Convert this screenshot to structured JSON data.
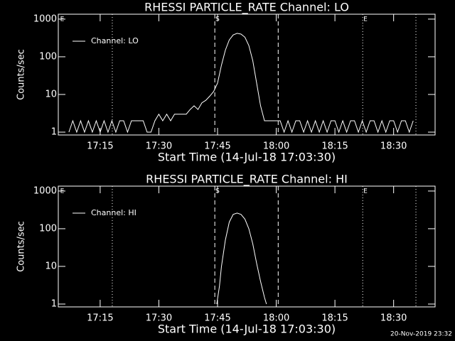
{
  "chart_data": [
    {
      "type": "line",
      "title": "RHESSI PARTICLE_RATE Channel: LO",
      "xlabel": "Start Time (14-Jul-18 17:03:30)",
      "ylabel": "Counts/sec",
      "yscale": "log",
      "xlim": [
        1024.3,
        1120.6
      ],
      "ylim": [
        0.84,
        1350
      ],
      "xticks": [
        {
          "value": 1035,
          "label": "17:15"
        },
        {
          "value": 1050,
          "label": "17:30"
        },
        {
          "value": 1065,
          "label": "17:45"
        },
        {
          "value": 1080,
          "label": "18:00"
        },
        {
          "value": 1095,
          "label": "18:15"
        },
        {
          "value": 1110,
          "label": "18:30"
        }
      ],
      "yticks": [
        1,
        10,
        100,
        1000
      ],
      "markers": [
        {
          "value": 1038.1,
          "style": "dotted"
        },
        {
          "value": 1064.3,
          "style": "dashed"
        },
        {
          "value": 1080.5,
          "style": "dashed"
        },
        {
          "value": 1102.1,
          "style": "dotted"
        },
        {
          "value": 1115.7,
          "style": "dotted"
        }
      ],
      "marker_labels": [
        {
          "value": 1024.6,
          "label": "E"
        },
        {
          "value": 1064.3,
          "label": "S"
        },
        {
          "value": 1102.1,
          "label": "E"
        }
      ],
      "x": [
        1027,
        1028,
        1029,
        1030,
        1031,
        1032,
        1033,
        1034,
        1035,
        1036,
        1037,
        1038,
        1039,
        1040,
        1041,
        1042,
        1043,
        1044,
        1045,
        1046,
        1047,
        1048,
        1049,
        1050,
        1051,
        1052,
        1053,
        1054,
        1055,
        1056,
        1057,
        1058,
        1059,
        1060,
        1061,
        1062,
        1063,
        1064,
        1065,
        1066,
        1067,
        1068,
        1069,
        1070,
        1071,
        1072,
        1073,
        1074,
        1075,
        1076,
        1077,
        1078,
        1079,
        1080,
        1081,
        1082,
        1083,
        1084,
        1085,
        1086,
        1087,
        1088,
        1089,
        1090,
        1091,
        1092,
        1093,
        1094,
        1095,
        1096,
        1097,
        1098,
        1099,
        1100,
        1101,
        1102,
        1103,
        1104,
        1105,
        1106,
        1107,
        1108,
        1109,
        1110,
        1111,
        1112,
        1113,
        1114,
        1115
      ],
      "series": [
        {
          "name": "Channel: LO",
          "color": "#ffffff",
          "values": [
            1,
            2,
            1,
            2,
            1,
            2,
            1,
            2,
            1,
            2,
            1,
            2,
            1,
            2,
            2,
            1,
            2,
            2,
            2,
            2,
            1,
            1,
            2,
            3,
            2,
            3,
            2,
            3,
            3,
            3,
            3,
            4,
            5,
            4,
            6,
            7,
            9,
            12,
            20,
            60,
            150,
            280,
            380,
            420,
            400,
            330,
            200,
            80,
            20,
            5,
            2,
            2,
            2,
            2,
            2,
            1,
            2,
            1,
            2,
            2,
            1,
            2,
            1,
            2,
            1,
            2,
            1,
            2,
            2,
            1,
            2,
            1,
            2,
            2,
            1,
            2,
            1,
            2,
            2,
            1,
            2,
            1,
            2,
            2,
            1,
            2,
            2,
            1,
            2
          ]
        }
      ]
    },
    {
      "type": "line",
      "title": "RHESSI PARTICLE_RATE Channel: HI",
      "xlabel": "Start Time (14-Jul-18 17:03:30)",
      "ylabel": "Counts/sec",
      "yscale": "log",
      "xlim": [
        1024.3,
        1120.6
      ],
      "ylim": [
        0.84,
        1350
      ],
      "xticks": [
        {
          "value": 1035,
          "label": "17:15"
        },
        {
          "value": 1050,
          "label": "17:30"
        },
        {
          "value": 1065,
          "label": "17:45"
        },
        {
          "value": 1080,
          "label": "18:00"
        },
        {
          "value": 1095,
          "label": "18:15"
        },
        {
          "value": 1110,
          "label": "18:30"
        }
      ],
      "yticks": [
        1,
        10,
        100,
        1000
      ],
      "markers": [
        {
          "value": 1038.1,
          "style": "dotted"
        },
        {
          "value": 1064.3,
          "style": "dashed"
        },
        {
          "value": 1080.5,
          "style": "dashed"
        },
        {
          "value": 1102.1,
          "style": "dotted"
        },
        {
          "value": 1115.7,
          "style": "dotted"
        }
      ],
      "marker_labels": [
        {
          "value": 1024.6,
          "label": "E"
        },
        {
          "value": 1064.3,
          "label": "S"
        },
        {
          "value": 1102.1,
          "label": "E"
        }
      ],
      "x": [
        1064.8,
        1065.5,
        1066,
        1067,
        1068,
        1069,
        1070,
        1071,
        1072,
        1073,
        1074,
        1075,
        1076,
        1077,
        1077.5
      ],
      "series": [
        {
          "name": "Channel: HI",
          "color": "#ffffff",
          "values": [
            1,
            3,
            10,
            50,
            150,
            240,
            260,
            240,
            180,
            100,
            40,
            12,
            4,
            1.5,
            1
          ]
        }
      ]
    }
  ],
  "footer": "20-Nov-2019 23:32"
}
